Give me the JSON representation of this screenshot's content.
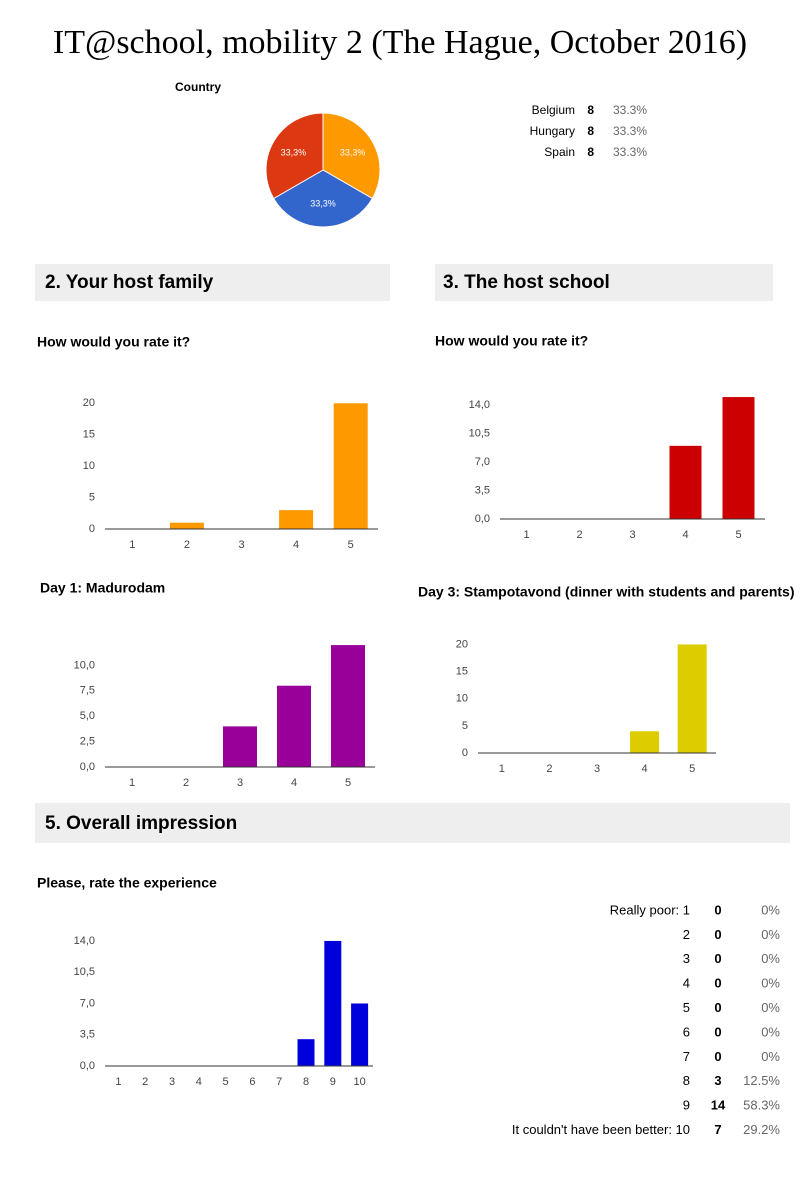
{
  "title": "IT@school, mobility 2 (The Hague, October 2016)",
  "sections": [
    "2. Your host family",
    "3. The host school",
    "5. Overall impression"
  ],
  "chart_data": [
    {
      "type": "pie",
      "title": "Country",
      "categories": [
        "Belgium",
        "Hungary",
        "Spain"
      ],
      "values": [
        33.3,
        33.3,
        33.3
      ],
      "value_labels": [
        "33,3%",
        "33,3%",
        "33,3%"
      ],
      "colors": [
        "#ff9900",
        "#3366cc",
        "#dc3912"
      ],
      "counts": [
        8,
        8,
        8
      ],
      "percents": [
        "33.3%",
        "33.3%",
        "33.3%"
      ]
    },
    {
      "type": "bar",
      "title": "How would you rate it?",
      "categories": [
        "1",
        "2",
        "3",
        "4",
        "5"
      ],
      "values": [
        0,
        1,
        0,
        3,
        20
      ],
      "color": "#ff9900",
      "ylim": [
        0,
        21
      ],
      "yticks": [
        0,
        5,
        10,
        15,
        20
      ]
    },
    {
      "type": "bar",
      "title": "How would you rate it?",
      "categories": [
        "1",
        "2",
        "3",
        "4",
        "5"
      ],
      "values": [
        0,
        0,
        0,
        9,
        15
      ],
      "color": "#cc0000",
      "ylim": [
        0,
        15.5
      ],
      "yticks": [
        {
          "value": 0,
          "label": "0,0"
        },
        {
          "value": 3.5,
          "label": "3,5"
        },
        {
          "value": 7,
          "label": "7,0"
        },
        {
          "value": 10.5,
          "label": "10,5"
        },
        {
          "value": 14,
          "label": "14,0"
        }
      ]
    },
    {
      "type": "bar",
      "title": "Day 1: Madurodam",
      "categories": [
        "1",
        "2",
        "3",
        "4",
        "5"
      ],
      "values": [
        0,
        0,
        4,
        8,
        12
      ],
      "color": "#990099",
      "ylim": [
        0,
        12.5
      ],
      "yticks": [
        {
          "value": 0,
          "label": "0,0"
        },
        {
          "value": 2.5,
          "label": "2,5"
        },
        {
          "value": 5,
          "label": "5,0"
        },
        {
          "value": 7.5,
          "label": "7,5"
        },
        {
          "value": 10,
          "label": "10,0"
        }
      ]
    },
    {
      "type": "bar",
      "title": "Day 3: Stampotavond (dinner with students and parents)",
      "categories": [
        "1",
        "2",
        "3",
        "4",
        "5"
      ],
      "values": [
        0,
        0,
        0,
        4,
        20
      ],
      "color": "#ddcc00",
      "ylim": [
        0,
        21
      ],
      "yticks": [
        0,
        5,
        10,
        15,
        20
      ]
    },
    {
      "type": "bar",
      "title": "Please, rate the experience",
      "categories": [
        "1",
        "2",
        "3",
        "4",
        "5",
        "6",
        "7",
        "8",
        "9",
        "10"
      ],
      "values": [
        0,
        0,
        0,
        0,
        0,
        0,
        0,
        3,
        14,
        7
      ],
      "color": "#0000dd",
      "ylim": [
        0,
        15
      ],
      "yticks": [
        {
          "value": 0,
          "label": "0,0"
        },
        {
          "value": 3.5,
          "label": "3,5"
        },
        {
          "value": 7,
          "label": "7,0"
        },
        {
          "value": 10.5,
          "label": "10,5"
        },
        {
          "value": 14,
          "label": "14,0"
        }
      ],
      "row_labels": [
        "Really poor: 1",
        "2",
        "3",
        "4",
        "5",
        "6",
        "7",
        "8",
        "9",
        "It couldn't have been better: 10"
      ],
      "percents": [
        "0%",
        "0%",
        "0%",
        "0%",
        "0%",
        "0%",
        "0%",
        "12.5%",
        "58.3%",
        "29.2%"
      ]
    }
  ]
}
